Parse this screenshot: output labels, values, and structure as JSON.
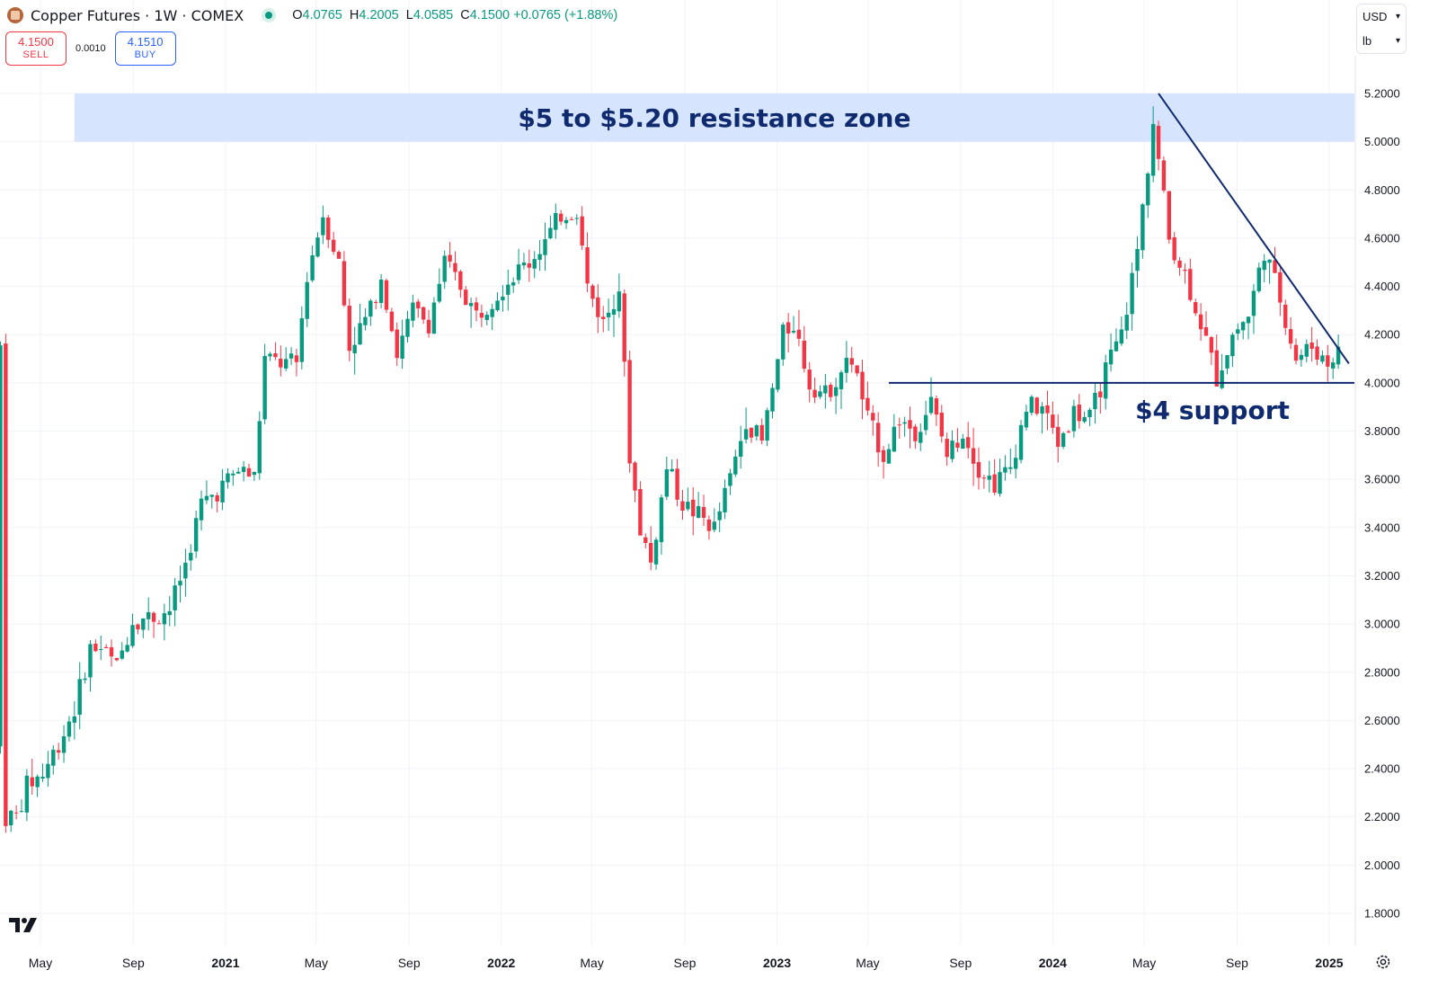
{
  "header": {
    "title": "Copper Futures · 1W · COMEX",
    "ohlc": {
      "o_label": "O",
      "o": "4.0765",
      "h_label": "H",
      "h": "4.2005",
      "l_label": "L",
      "l": "4.0585",
      "c_label": "C",
      "c": "4.1500",
      "change": "+0.0765 (+1.88%)"
    }
  },
  "trade": {
    "sell_price": "4.1500",
    "sell_label": "SELL",
    "spread": "0.0010",
    "buy_price": "4.1510",
    "buy_label": "BUY"
  },
  "units": {
    "currency": "USD",
    "unit": "lb"
  },
  "icons": {
    "symbol": "copper-symbol-icon",
    "tv_logo": "tradingview-logo-icon",
    "settings": "gear-icon"
  },
  "colors": {
    "up": "#089981",
    "down": "#f23645",
    "zone": "#d6e4fd",
    "annotation": "#0f2a6e",
    "grid": "#f0f3fa"
  },
  "chart_data": {
    "type": "candlestick",
    "timeframe": "1W",
    "ylim": [
      1.72,
      5.38
    ],
    "y_ticks": [
      "1.8000",
      "2.0000",
      "2.2000",
      "2.4000",
      "2.6000",
      "2.8000",
      "3.0000",
      "3.2000",
      "3.4000",
      "3.6000",
      "3.8000",
      "4.0000",
      "4.2000",
      "4.4000",
      "4.6000",
      "4.8000",
      "5.0000",
      "5.2000"
    ],
    "x_ticks": [
      {
        "label": "May",
        "date": "2020-05-01"
      },
      {
        "label": "Sep",
        "date": "2020-09-01"
      },
      {
        "label": "2021",
        "date": "2021-01-01"
      },
      {
        "label": "May",
        "date": "2021-05-01"
      },
      {
        "label": "Sep",
        "date": "2021-09-01"
      },
      {
        "label": "2022",
        "date": "2022-01-01"
      },
      {
        "label": "May",
        "date": "2022-05-01"
      },
      {
        "label": "Sep",
        "date": "2022-09-01"
      },
      {
        "label": "2023",
        "date": "2023-01-01"
      },
      {
        "label": "May",
        "date": "2023-05-01"
      },
      {
        "label": "Sep",
        "date": "2023-09-01"
      },
      {
        "label": "2024",
        "date": "2024-01-01"
      },
      {
        "label": "May",
        "date": "2024-05-01"
      },
      {
        "label": "Sep",
        "date": "2024-09-01"
      },
      {
        "label": "2025",
        "date": "2025-01-01"
      }
    ],
    "closes": [
      {
        "date": "2020-03-16",
        "c": 2.2
      },
      {
        "date": "2020-03-30",
        "c": 2.2
      },
      {
        "date": "2020-04-13",
        "c": 2.33
      },
      {
        "date": "2020-05-04",
        "c": 2.38
      },
      {
        "date": "2020-06-01",
        "c": 2.55
      },
      {
        "date": "2020-06-15",
        "c": 2.65
      },
      {
        "date": "2020-07-06",
        "c": 2.9
      },
      {
        "date": "2020-07-20",
        "c": 2.9
      },
      {
        "date": "2020-08-10",
        "c": 2.82
      },
      {
        "date": "2020-08-31",
        "c": 3.02
      },
      {
        "date": "2020-09-28",
        "c": 3.03
      },
      {
        "date": "2020-10-19",
        "c": 3.06
      },
      {
        "date": "2020-11-09",
        "c": 3.25
      },
      {
        "date": "2020-11-30",
        "c": 3.5
      },
      {
        "date": "2020-12-21",
        "c": 3.55
      },
      {
        "date": "2021-01-18",
        "c": 3.64
      },
      {
        "date": "2021-02-08",
        "c": 3.61
      },
      {
        "date": "2021-02-22",
        "c": 4.1
      },
      {
        "date": "2021-03-15",
        "c": 4.08
      },
      {
        "date": "2021-04-05",
        "c": 4.08
      },
      {
        "date": "2021-04-19",
        "c": 4.45
      },
      {
        "date": "2021-05-10",
        "c": 4.7
      },
      {
        "date": "2021-05-31",
        "c": 4.5
      },
      {
        "date": "2021-06-14",
        "c": 4.15
      },
      {
        "date": "2021-07-12",
        "c": 4.3
      },
      {
        "date": "2021-07-26",
        "c": 4.45
      },
      {
        "date": "2021-08-16",
        "c": 4.12
      },
      {
        "date": "2021-09-06",
        "c": 4.3
      },
      {
        "date": "2021-09-27",
        "c": 4.25
      },
      {
        "date": "2021-10-18",
        "c": 4.5
      },
      {
        "date": "2021-11-08",
        "c": 4.4
      },
      {
        "date": "2021-11-29",
        "c": 4.28
      },
      {
        "date": "2021-12-20",
        "c": 4.35
      },
      {
        "date": "2022-01-17",
        "c": 4.45
      },
      {
        "date": "2022-02-07",
        "c": 4.5
      },
      {
        "date": "2022-03-07",
        "c": 4.62
      },
      {
        "date": "2022-03-21",
        "c": 4.7
      },
      {
        "date": "2022-04-11",
        "c": 4.72
      },
      {
        "date": "2022-04-25",
        "c": 4.4
      },
      {
        "date": "2022-05-16",
        "c": 4.25
      },
      {
        "date": "2022-06-06",
        "c": 4.4
      },
      {
        "date": "2022-06-20",
        "c": 3.7
      },
      {
        "date": "2022-07-04",
        "c": 3.4
      },
      {
        "date": "2022-07-18",
        "c": 3.25
      },
      {
        "date": "2022-08-08",
        "c": 3.65
      },
      {
        "date": "2022-08-29",
        "c": 3.5
      },
      {
        "date": "2022-09-19",
        "c": 3.45
      },
      {
        "date": "2022-10-10",
        "c": 3.4
      },
      {
        "date": "2022-10-31",
        "c": 3.6
      },
      {
        "date": "2022-11-21",
        "c": 3.85
      },
      {
        "date": "2022-12-12",
        "c": 3.75
      },
      {
        "date": "2023-01-09",
        "c": 4.2
      },
      {
        "date": "2023-01-23",
        "c": 4.25
      },
      {
        "date": "2023-02-13",
        "c": 4.0
      },
      {
        "date": "2023-03-06",
        "c": 3.95
      },
      {
        "date": "2023-03-27",
        "c": 4.05
      },
      {
        "date": "2023-04-10",
        "c": 4.1
      },
      {
        "date": "2023-05-01",
        "c": 3.85
      },
      {
        "date": "2023-05-22",
        "c": 3.7
      },
      {
        "date": "2023-06-12",
        "c": 3.85
      },
      {
        "date": "2023-07-03",
        "c": 3.8
      },
      {
        "date": "2023-07-24",
        "c": 3.92
      },
      {
        "date": "2023-08-14",
        "c": 3.7
      },
      {
        "date": "2023-09-04",
        "c": 3.8
      },
      {
        "date": "2023-09-25",
        "c": 3.65
      },
      {
        "date": "2023-10-16",
        "c": 3.58
      },
      {
        "date": "2023-11-06",
        "c": 3.65
      },
      {
        "date": "2023-11-27",
        "c": 3.9
      },
      {
        "date": "2023-12-18",
        "c": 3.9
      },
      {
        "date": "2024-01-08",
        "c": 3.75
      },
      {
        "date": "2024-01-29",
        "c": 3.88
      },
      {
        "date": "2024-02-19",
        "c": 3.85
      },
      {
        "date": "2024-03-11",
        "c": 4.05
      },
      {
        "date": "2024-04-01",
        "c": 4.2
      },
      {
        "date": "2024-04-22",
        "c": 4.55
      },
      {
        "date": "2024-05-13",
        "c": 5.08
      },
      {
        "date": "2024-06-03",
        "c": 4.6
      },
      {
        "date": "2024-06-24",
        "c": 4.45
      },
      {
        "date": "2024-07-15",
        "c": 4.25
      },
      {
        "date": "2024-08-05",
        "c": 4.02
      },
      {
        "date": "2024-08-26",
        "c": 4.2
      },
      {
        "date": "2024-09-16",
        "c": 4.28
      },
      {
        "date": "2024-10-07",
        "c": 4.55
      },
      {
        "date": "2024-10-28",
        "c": 4.35
      },
      {
        "date": "2024-11-18",
        "c": 4.1
      },
      {
        "date": "2024-12-09",
        "c": 4.15
      },
      {
        "date": "2024-12-30",
        "c": 4.08
      },
      {
        "date": "2025-01-13",
        "c": 4.15
      }
    ],
    "annotations": {
      "resistance_zone": {
        "label": "$5 to $5.20 resistance zone",
        "from": 5.0,
        "to": 5.2,
        "start_date": "2020-06-15"
      },
      "support": {
        "label": "$4 support",
        "price": 4.0,
        "start_date": "2023-05-29"
      },
      "trendline": {
        "from_date": "2024-05-20",
        "from_price": 5.2,
        "to_date": "2025-01-27",
        "to_price": 4.08
      }
    }
  }
}
